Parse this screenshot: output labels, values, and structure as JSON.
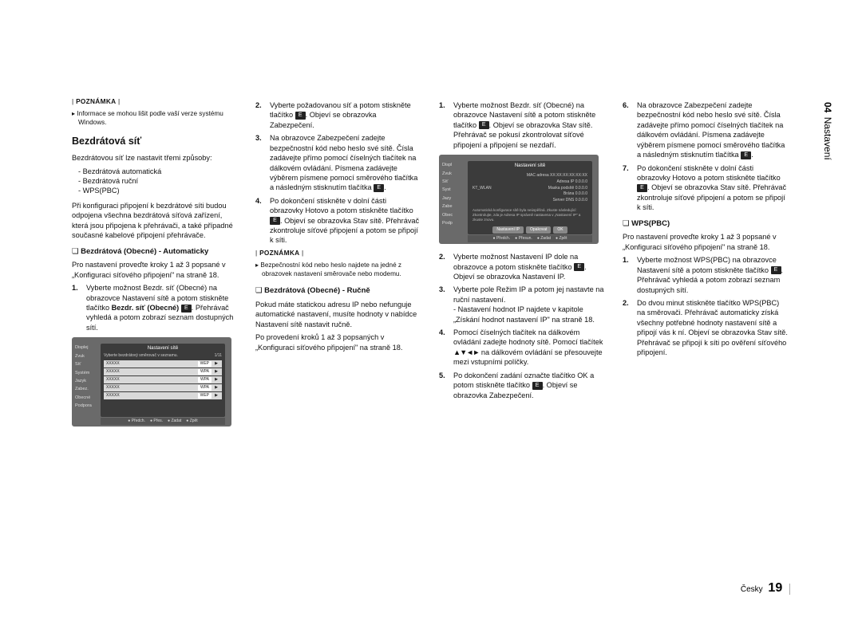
{
  "sideTab": {
    "chapter": "04",
    "title": "Nastavení"
  },
  "footer": {
    "lang": "Česky",
    "page": "19"
  },
  "col1": {
    "noteLabel": "POZNÁMKA",
    "note": "Informace se mohou lišit podle vaší verze systému Windows.",
    "h3": "Bezdrátová síť",
    "p1": "Bezdrátovou síť lze nastavit třemi způsoby:",
    "bullets": [
      "Bezdrátová automatická",
      "Bezdrátová ruční",
      "WPS(PBC)"
    ],
    "p2": "Při konfiguraci připojení k bezdrátové síti budou odpojena všechna bezdrátová síťová zařízení, která jsou připojena k přehrávači, a také případné současné kabelové připojení přehrávače.",
    "sub1": "Bezdrátová (Obecné) - Automaticky",
    "p3": "Pro nastavení proveďte kroky 1 až 3 popsané v „Konfiguraci síťového připojení\" na straně 18.",
    "li1num": "1.",
    "li1": "Vyberte možnost Bezdr. síť (Obecné) na obrazovce Nastavení sítě a potom stiskněte tlačítko ",
    "li1b": ". Přehrávač vyhledá a potom zobrazí seznam dostupných sítí.",
    "shot1": {
      "sideItems": [
        "Displej",
        "Zvuk",
        "Síť",
        "Systém",
        "Jazyk",
        "Zabez.",
        "Obecné",
        "Podpora"
      ],
      "title": "Nastavení",
      "winTitle": "Nastavení sítě",
      "sub": "Vyberte bezdrátový směrovač v seznamu.",
      "count": "1/11",
      "rows": [
        {
          "n": "XXXXX",
          "t": "WEP"
        },
        {
          "n": "XXXXX",
          "t": "WPA"
        },
        {
          "n": "XXXXX",
          "t": "WPA"
        },
        {
          "n": "XXXXX",
          "t": "WPA"
        },
        {
          "n": "XXXXX",
          "t": "WEP"
        }
      ],
      "footer": [
        "Předch.",
        "Přes.",
        "Zadat",
        "Zpět"
      ]
    }
  },
  "col2": {
    "li2num": "2.",
    "li2a": "Vyberte požadovanou síť a potom stiskněte tlačítko ",
    "li2b": ". Objeví se obrazovka Zabezpečení.",
    "li3num": "3.",
    "li3": "Na obrazovce Zabezpečení zadejte bezpečnostní kód nebo heslo své sítě. Čísla zadávejte přímo pomocí číselných tlačítek na dálkovém ovládání. Písmena zadávejte výběrem písmene pomocí směrového tlačítka a následným stisknutím tlačítka ",
    "li4num": "4.",
    "li4a": "Po dokončení stiskněte v dolní části obrazovky Hotovo a potom stiskněte tlačítko ",
    "li4b": ". Objeví se obrazovka Stav sítě. Přehrávač zkontroluje síťové připojení a potom se připojí k síti.",
    "noteLabel": "POZNÁMKA",
    "note": "Bezpečnostní kód nebo heslo najdete na jedné z obrazovek nastavení směrovače nebo modemu.",
    "sub2": "Bezdrátová (Obecné) - Ručně",
    "p1": "Pokud máte statickou adresu IP nebo nefunguje automatické nastavení, musíte hodnoty v nabídce Nastavení sítě nastavit ručně.",
    "p2": "Po provedení kroků 1 až 3 popsaných v „Konfiguraci síťového připojení\" na straně 18."
  },
  "col3": {
    "li1num": "1.",
    "li1a": "Vyberte možnost Bezdr. síť (Obecné) na obrazovce Nastavení sítě a potom stiskněte tlačítko ",
    "li1b": ". Objeví se obrazovka Stav sítě. Přehrávač se pokusí zkontrolovat síťové připojení a připojení se nezdaří.",
    "shot2": {
      "sideItems": [
        "Displ",
        "Zvuk",
        "Síť",
        "Syst",
        "Jazy",
        "Zabe",
        "Obec",
        "Podp"
      ],
      "title": "Nastavení sítě",
      "rows": [
        {
          "l": "",
          "r": "MAC adresa  XX:XX:XX:XX:XX:XX"
        },
        {
          "l": "",
          "r": "Adresa IP            0.0.0.0"
        },
        {
          "l": "KT_WLAN",
          "r": "Maska podsítě  0.0.0.0"
        },
        {
          "l": "",
          "r": "Brána                0.0.0.0"
        },
        {
          "l": "",
          "r": "Server DNS        0.0.0.0"
        }
      ],
      "msg": "Automatická konfigurace sítě byla neúspěšná. Zkuste následující: Zkontrolujte, zda je Adresa IP správně nastavena v „Nastavení IP\" a zkuste znovu.",
      "btns": [
        "Nastavení IP",
        "Opakovat",
        "OK"
      ],
      "footer": [
        "Předch.",
        "Přesun.",
        "Zadat",
        "Zpět"
      ]
    },
    "li2num": "2.",
    "li2a": "Vyberte možnost Nastavení IP dole na obrazovce a potom stiskněte tlačítko ",
    "li2b": ". Objeví se obrazovka Nastavení IP.",
    "li3num": "3.",
    "li3a": "Vyberte pole Režim IP a potom jej nastavte na ruční nastavení.",
    "li3b": "Nastavení hodnot IP najdete v kapitole „Získání hodnot nastavení IP\" na straně 18.",
    "li4num": "4.",
    "li4a": "Pomocí číselných tlačítek na dálkovém ovládání zadejte hodnoty sítě. Pomocí tlačítek ",
    "li4b": " na dálkovém ovládání se přesouvejte mezi vstupními políčky.",
    "li5num": "5.",
    "li5a": "Po dokončení zadání označte tlačítko OK a potom stiskněte tlačítko ",
    "li5b": ". Objeví se obrazovka Zabezpečení."
  },
  "col4": {
    "li6num": "6.",
    "li6": "Na obrazovce Zabezpečení zadejte bezpečnostní kód nebo heslo své sítě. Čísla zadávejte přímo pomocí číselných tlačítek na dálkovém ovládání. Písmena zadávejte výběrem písmene pomocí směrového tlačítka a následným stisknutím tlačítka ",
    "li7num": "7.",
    "li7a": "Po dokončení stiskněte v dolní části obrazovky Hotovo a potom stiskněte tlačítko ",
    "li7b": ". Objeví se obrazovka Stav sítě. Přehrávač zkontroluje síťové připojení a potom se připojí k síti.",
    "sub": "WPS(PBC)",
    "p1": "Pro nastavení proveďte kroky 1 až 3 popsané v „Konfiguraci síťového připojení\" na straně 18.",
    "li1num": "1.",
    "li1a": "Vyberte možnost WPS(PBC) na obrazovce Nastavení sítě a potom stiskněte tlačítko ",
    "li1b": ". Přehrávač vyhledá a potom zobrazí seznam dostupných sítí.",
    "li2num": "2.",
    "li2": "Do dvou minut stiskněte tlačítko WPS(PBC) na směrovači. Přehrávač automaticky získá všechny potřebné hodnoty nastavení sítě a připojí vás k ní. Objeví se obrazovka Stav sítě. Přehrávač se připojí k síti po ověření síťového připojení."
  }
}
